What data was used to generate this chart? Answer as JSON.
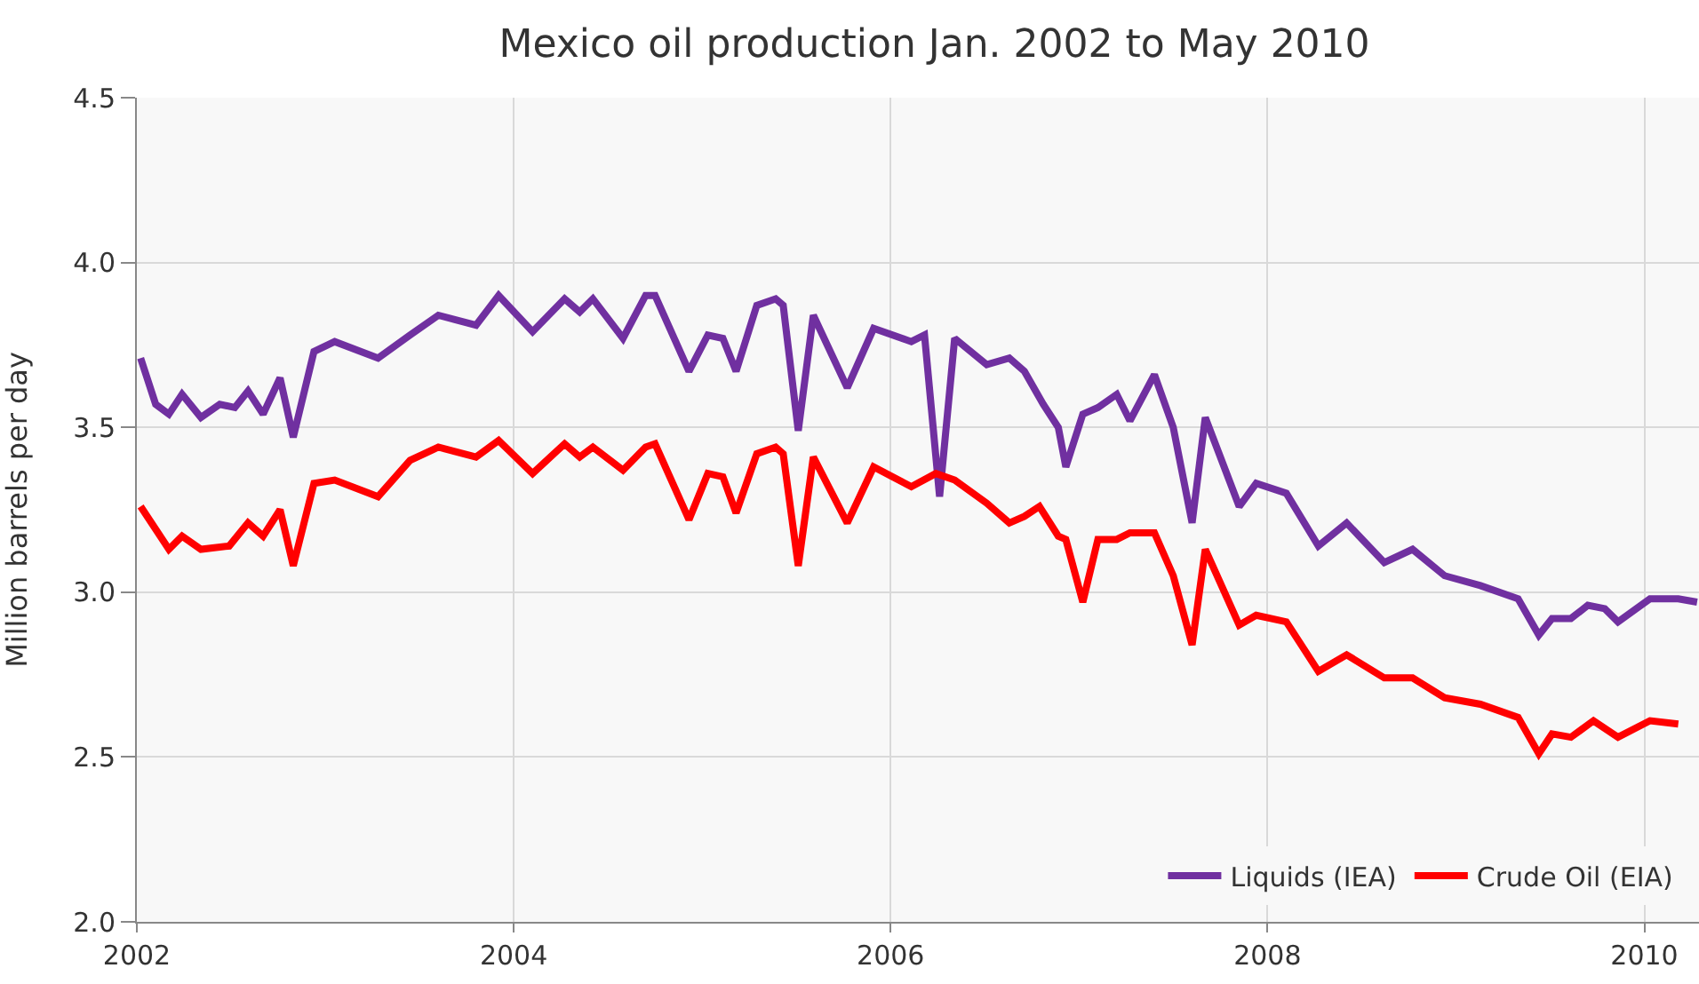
{
  "chart_data": {
    "type": "line",
    "title": "Mexico oil production Jan. 2002 to May 2010",
    "ylabel": "Million barrels per day",
    "xlim": [
      2002,
      2010.29
    ],
    "xticks": [
      2002,
      2004,
      2006,
      2008,
      2010
    ],
    "ylim": [
      2.0,
      4.5
    ],
    "yticks": [
      {
        "value": 2.0,
        "label": "2.0"
      },
      {
        "value": 2.5,
        "label": "2.5"
      },
      {
        "value": 3.0,
        "label": "3.0"
      },
      {
        "value": 3.5,
        "label": "3.5"
      },
      {
        "value": 4.0,
        "label": "4.0"
      },
      {
        "value": 4.5,
        "label": "4.5"
      }
    ],
    "grid": true,
    "legend": "bottom right",
    "marker": "none",
    "line_style": "solid",
    "series": [
      {
        "name": "Liquids (IEA)",
        "color": "#7030a0",
        "x": [
          2002.02,
          2002.1,
          2002.17,
          2002.24,
          2002.34,
          2002.44,
          2002.52,
          2002.59,
          2002.67,
          2002.76,
          2002.83,
          2002.94,
          2003.05,
          2003.28,
          2003.45,
          2003.6,
          2003.8,
          2003.92,
          2004.1,
          2004.27,
          2004.35,
          2004.42,
          2004.58,
          2004.7,
          2004.75,
          2004.93,
          2005.03,
          2005.11,
          2005.18,
          2005.29,
          2005.39,
          2005.43,
          2005.51,
          2005.59,
          2005.77,
          2005.91,
          2006.11,
          2006.18,
          2006.26,
          2006.34,
          2006.51,
          2006.63,
          2006.71,
          2006.81,
          2006.89,
          2006.93,
          2007.02,
          2007.1,
          2007.2,
          2007.27,
          2007.4,
          2007.5,
          2007.6,
          2007.67,
          2007.85,
          2007.94,
          2008.1,
          2008.27,
          2008.42,
          2008.62,
          2008.77,
          2008.94,
          2009.13,
          2009.33,
          2009.44,
          2009.51,
          2009.61,
          2009.7,
          2009.79,
          2009.86,
          2010.03,
          2010.18,
          2010.28
        ],
        "values": [
          3.71,
          3.57,
          3.54,
          3.6,
          3.53,
          3.57,
          3.56,
          3.61,
          3.54,
          3.65,
          3.47,
          3.73,
          3.76,
          3.71,
          3.78,
          3.84,
          3.81,
          3.9,
          3.79,
          3.89,
          3.85,
          3.89,
          3.77,
          3.9,
          3.9,
          3.67,
          3.78,
          3.77,
          3.67,
          3.87,
          3.89,
          3.87,
          3.49,
          3.84,
          3.62,
          3.8,
          3.76,
          3.78,
          3.29,
          3.77,
          3.69,
          3.71,
          3.67,
          3.57,
          3.5,
          3.38,
          3.54,
          3.56,
          3.6,
          3.52,
          3.66,
          3.5,
          3.21,
          3.53,
          3.26,
          3.33,
          3.3,
          3.14,
          3.21,
          3.09,
          3.13,
          3.05,
          3.02,
          2.98,
          2.87,
          2.92,
          2.92,
          2.96,
          2.95,
          2.91,
          2.98,
          2.98,
          2.97
        ]
      },
      {
        "name": "Crude Oil (EIA)",
        "color": "#ff0000",
        "x": [
          2002.02,
          2002.17,
          2002.24,
          2002.34,
          2002.49,
          2002.59,
          2002.67,
          2002.76,
          2002.83,
          2002.94,
          2003.05,
          2003.28,
          2003.45,
          2003.6,
          2003.8,
          2003.92,
          2004.1,
          2004.27,
          2004.35,
          2004.42,
          2004.58,
          2004.7,
          2004.75,
          2004.93,
          2005.03,
          2005.11,
          2005.18,
          2005.29,
          2005.39,
          2005.43,
          2005.51,
          2005.59,
          2005.77,
          2005.91,
          2006.11,
          2006.24,
          2006.34,
          2006.51,
          2006.63,
          2006.71,
          2006.79,
          2006.89,
          2006.93,
          2007.02,
          2007.1,
          2007.2,
          2007.27,
          2007.4,
          2007.5,
          2007.6,
          2007.67,
          2007.85,
          2007.94,
          2008.1,
          2008.27,
          2008.42,
          2008.62,
          2008.77,
          2008.94,
          2009.13,
          2009.33,
          2009.44,
          2009.51,
          2009.61,
          2009.73,
          2009.86,
          2010.03,
          2010.18
        ],
        "values": [
          3.26,
          3.13,
          3.17,
          3.13,
          3.14,
          3.21,
          3.17,
          3.25,
          3.08,
          3.33,
          3.34,
          3.29,
          3.4,
          3.44,
          3.41,
          3.46,
          3.36,
          3.45,
          3.41,
          3.44,
          3.37,
          3.44,
          3.45,
          3.22,
          3.36,
          3.35,
          3.24,
          3.42,
          3.44,
          3.42,
          3.08,
          3.41,
          3.21,
          3.38,
          3.32,
          3.36,
          3.34,
          3.27,
          3.21,
          3.23,
          3.26,
          3.17,
          3.16,
          2.97,
          3.16,
          3.16,
          3.18,
          3.18,
          3.05,
          2.84,
          3.13,
          2.9,
          2.93,
          2.91,
          2.76,
          2.81,
          2.74,
          2.74,
          2.68,
          2.66,
          2.62,
          2.51,
          2.57,
          2.56,
          2.61,
          2.56,
          2.61,
          2.6
        ]
      }
    ]
  }
}
